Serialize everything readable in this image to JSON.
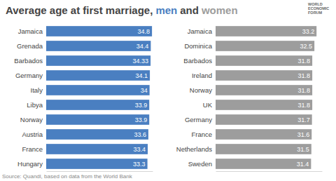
{
  "title": "Average age at first marriage,",
  "title_joiner": "and",
  "logo": [
    "WORLD",
    "ECONOMIC",
    "FORUM"
  ],
  "source": "Source: Quandl, based on data from the World Bank",
  "chart_data": [
    {
      "type": "bar",
      "orientation": "horizontal",
      "data_labels": true,
      "tick_labels": "y",
      "xlim": [
        0,
        35
      ],
      "categories": [
        "Jamaica",
        "Grenada",
        "Barbados",
        "Germany",
        "Italy",
        "Libya",
        "Norway",
        "Austria",
        "France",
        "Hungary"
      ],
      "series": [
        {
          "name": "men",
          "color": "#4a7fc1",
          "values": [
            34.8,
            34.4,
            34.33,
            34.1,
            34,
            33.9,
            33.9,
            33.6,
            33.4,
            33.3
          ]
        }
      ]
    },
    {
      "type": "bar",
      "orientation": "horizontal",
      "data_labels": true,
      "tick_labels": "y",
      "xlim": [
        0,
        35
      ],
      "categories": [
        "Jamaica",
        "Dominica",
        "Barbados",
        "Ireland",
        "Norway",
        "UK",
        "Germany",
        "France",
        "Netherlands",
        "Sweden"
      ],
      "series": [
        {
          "name": "women",
          "color": "#9d9d9d",
          "values": [
            33.2,
            32.5,
            31.8,
            31.8,
            31.8,
            31.8,
            31.7,
            31.6,
            31.5,
            31.4
          ]
        }
      ]
    }
  ]
}
